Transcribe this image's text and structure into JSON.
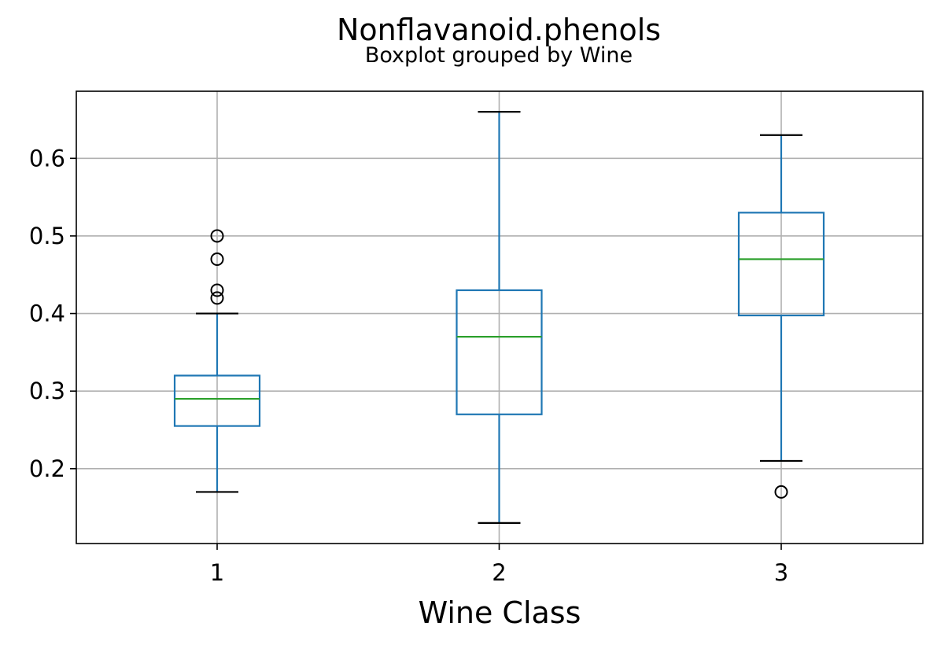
{
  "chart_data": {
    "type": "boxplot",
    "title": "Nonflavanoid.phenols",
    "subtitle": "Boxplot grouped by Wine",
    "xlabel": "Wine Class",
    "ylabel": "",
    "categories": [
      "1",
      "2",
      "3"
    ],
    "ylim": [
      0.1035,
      0.6865
    ],
    "yticks": [
      0.2,
      0.3,
      0.4,
      0.5,
      0.6
    ],
    "ytick_labels": [
      "0.2",
      "0.3",
      "0.4",
      "0.5",
      "0.6"
    ],
    "grid": true,
    "boxes": [
      {
        "category": "1",
        "whisker_low": 0.17,
        "q1": 0.255,
        "median": 0.29,
        "q3": 0.32,
        "whisker_high": 0.4,
        "outliers": [
          0.42,
          0.43,
          0.47,
          0.5
        ]
      },
      {
        "category": "2",
        "whisker_low": 0.13,
        "q1": 0.27,
        "median": 0.37,
        "q3": 0.43,
        "whisker_high": 0.66,
        "outliers": []
      },
      {
        "category": "3",
        "whisker_low": 0.21,
        "q1": 0.3975,
        "median": 0.47,
        "q3": 0.53,
        "whisker_high": 0.63,
        "outliers": [
          0.17
        ]
      }
    ],
    "colors": {
      "box": "#1f77b4",
      "median": "#2ca02c",
      "whisker_cap": "#000000",
      "outlier": "#000000",
      "grid": "#b0b0b0",
      "axes": "#000000"
    }
  }
}
